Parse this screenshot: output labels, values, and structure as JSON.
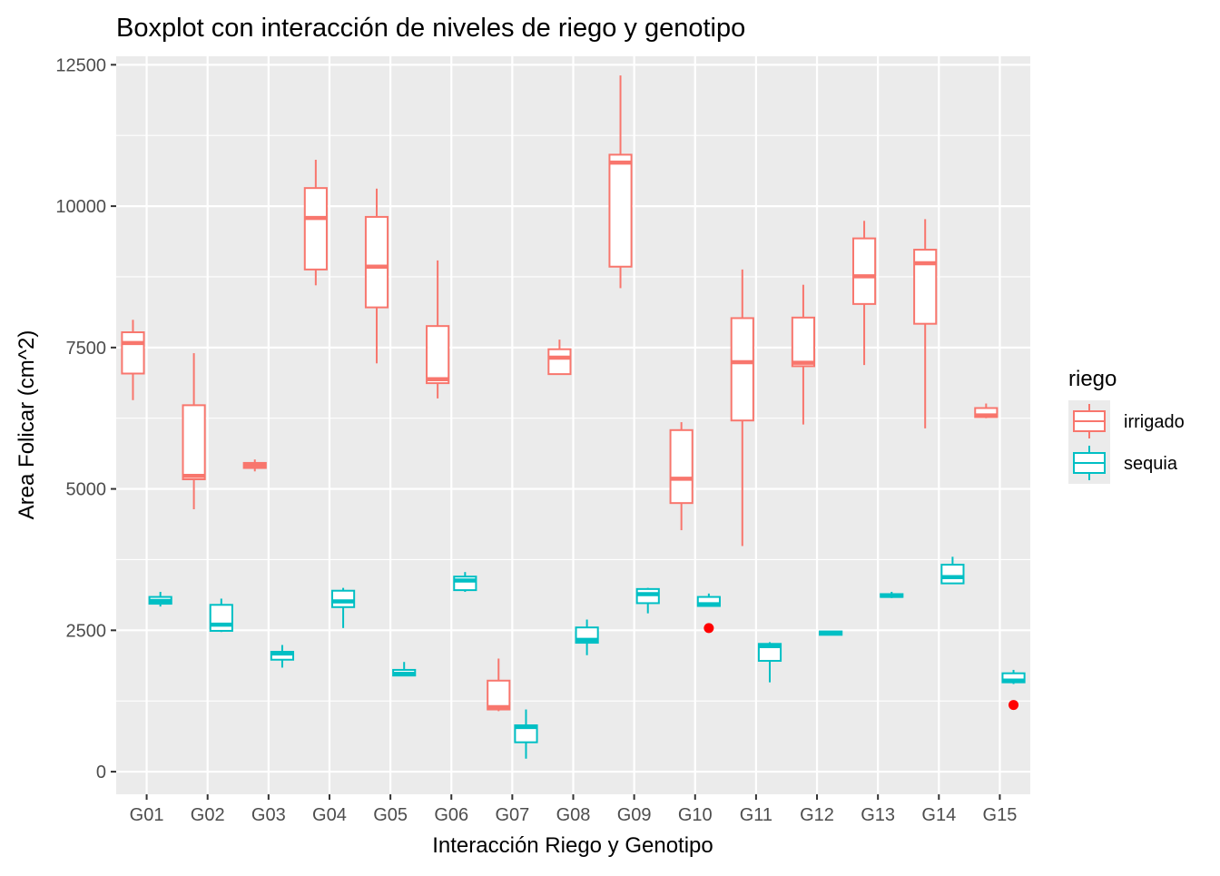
{
  "chart_data": {
    "type": "boxplot",
    "title": "Boxplot con interacción de niveles de riego y genotipo",
    "xlabel": "Interacción Riego y Genotipo",
    "ylabel": "Area Folicar (cm^2)",
    "ylim": [
      -400,
      12650
    ],
    "yticks": [
      0,
      2500,
      5000,
      7500,
      10000,
      12500
    ],
    "yticklabels": [
      "0",
      "2500",
      "5000",
      "7500",
      "10000",
      "12500"
    ],
    "categories": [
      "G01",
      "G02",
      "G03",
      "G04",
      "G05",
      "G06",
      "G07",
      "G08",
      "G09",
      "G10",
      "G11",
      "G12",
      "G13",
      "G14",
      "G15"
    ],
    "grid": true,
    "legend": {
      "title": "riego",
      "position": "right"
    },
    "outlier_color": "#ff0000",
    "series": [
      {
        "name": "irrigado",
        "color": "#f8766d",
        "boxes": [
          {
            "category": "G01",
            "min": 6570,
            "q1": 7040,
            "median": 7580,
            "q3": 7770,
            "max": 7990,
            "outliers": []
          },
          {
            "category": "G02",
            "min": 4640,
            "q1": 5170,
            "median": 5230,
            "q3": 6480,
            "max": 7400,
            "outliers": []
          },
          {
            "category": "G03",
            "min": 5310,
            "q1": 5370,
            "median": 5420,
            "q3": 5460,
            "max": 5520,
            "outliers": []
          },
          {
            "category": "G04",
            "min": 8600,
            "q1": 8880,
            "median": 9790,
            "q3": 10320,
            "max": 10820,
            "outliers": []
          },
          {
            "category": "G05",
            "min": 7220,
            "q1": 8210,
            "median": 8930,
            "q3": 9810,
            "max": 10310,
            "outliers": []
          },
          {
            "category": "G06",
            "min": 6600,
            "q1": 6870,
            "median": 6940,
            "q3": 7880,
            "max": 9040,
            "outliers": []
          },
          {
            "category": "G07",
            "min": 1070,
            "q1": 1100,
            "median": 1140,
            "q3": 1610,
            "max": 2000,
            "outliers": []
          },
          {
            "category": "G08",
            "min": 7030,
            "q1": 7030,
            "median": 7320,
            "q3": 7470,
            "max": 7640,
            "outliers": []
          },
          {
            "category": "G09",
            "min": 8550,
            "q1": 8930,
            "median": 10770,
            "q3": 10910,
            "max": 12310,
            "outliers": []
          },
          {
            "category": "G10",
            "min": 4270,
            "q1": 4750,
            "median": 5180,
            "q3": 6040,
            "max": 6180,
            "outliers": []
          },
          {
            "category": "G11",
            "min": 3990,
            "q1": 6210,
            "median": 7240,
            "q3": 8020,
            "max": 8880,
            "outliers": []
          },
          {
            "category": "G12",
            "min": 6140,
            "q1": 7170,
            "median": 7230,
            "q3": 8030,
            "max": 8610,
            "outliers": []
          },
          {
            "category": "G13",
            "min": 7190,
            "q1": 8270,
            "median": 8760,
            "q3": 9430,
            "max": 9740,
            "outliers": []
          },
          {
            "category": "G14",
            "min": 6070,
            "q1": 7920,
            "median": 8990,
            "q3": 9230,
            "max": 9770,
            "outliers": []
          },
          {
            "category": "G15",
            "min": 6250,
            "q1": 6270,
            "median": 6300,
            "q3": 6430,
            "max": 6510,
            "outliers": []
          }
        ]
      },
      {
        "name": "sequia",
        "color": "#00bfc4",
        "boxes": [
          {
            "category": "G01",
            "min": 2920,
            "q1": 2970,
            "median": 3020,
            "q3": 3090,
            "max": 3180,
            "outliers": []
          },
          {
            "category": "G02",
            "min": 2470,
            "q1": 2490,
            "median": 2600,
            "q3": 2950,
            "max": 3060,
            "outliers": []
          },
          {
            "category": "G03",
            "min": 1840,
            "q1": 1980,
            "median": 2090,
            "q3": 2120,
            "max": 2240,
            "outliers": []
          },
          {
            "category": "G04",
            "min": 2540,
            "q1": 2910,
            "median": 3010,
            "q3": 3200,
            "max": 3250,
            "outliers": []
          },
          {
            "category": "G05",
            "min": 1690,
            "q1": 1700,
            "median": 1730,
            "q3": 1800,
            "max": 1940,
            "outliers": []
          },
          {
            "category": "G06",
            "min": 3180,
            "q1": 3210,
            "median": 3380,
            "q3": 3450,
            "max": 3530,
            "outliers": []
          },
          {
            "category": "G07",
            "min": 230,
            "q1": 520,
            "median": 790,
            "q3": 820,
            "max": 1100,
            "outliers": []
          },
          {
            "category": "G08",
            "min": 2060,
            "q1": 2280,
            "median": 2330,
            "q3": 2550,
            "max": 2690,
            "outliers": []
          },
          {
            "category": "G09",
            "min": 2800,
            "q1": 2980,
            "median": 3140,
            "q3": 3230,
            "max": 3250,
            "outliers": []
          },
          {
            "category": "G10",
            "min": 2920,
            "q1": 2930,
            "median": 2960,
            "q3": 3090,
            "max": 3150,
            "outliers": [
              2540
            ]
          },
          {
            "category": "G11",
            "min": 1580,
            "q1": 1960,
            "median": 2220,
            "q3": 2260,
            "max": 2290,
            "outliers": []
          },
          {
            "category": "G12",
            "min": 2410,
            "q1": 2420,
            "median": 2450,
            "q3": 2480,
            "max": 2480,
            "outliers": []
          },
          {
            "category": "G13",
            "min": 3070,
            "q1": 3090,
            "median": 3110,
            "q3": 3140,
            "max": 3180,
            "outliers": []
          },
          {
            "category": "G14",
            "min": 3320,
            "q1": 3330,
            "median": 3440,
            "q3": 3660,
            "max": 3800,
            "outliers": []
          },
          {
            "category": "G15",
            "min": 1550,
            "q1": 1580,
            "median": 1610,
            "q3": 1740,
            "max": 1800,
            "outliers": [
              1180
            ]
          }
        ]
      }
    ]
  }
}
